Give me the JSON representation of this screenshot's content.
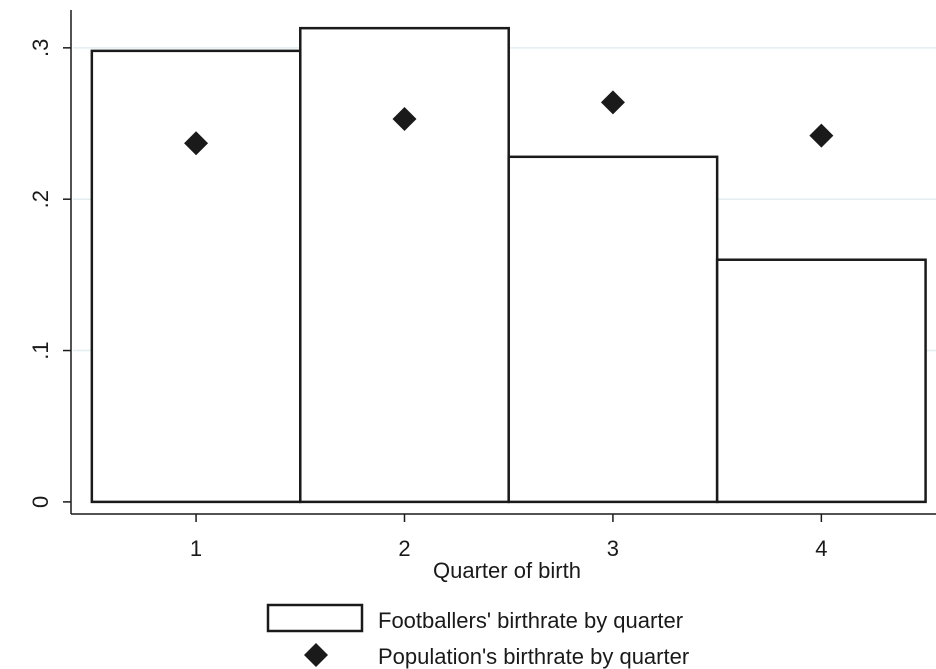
{
  "chart_data": {
    "type": "bar",
    "categories": [
      "1",
      "2",
      "3",
      "4"
    ],
    "series": [
      {
        "name": "Footballers' birthrate by quarter",
        "kind": "bar",
        "values": [
          0.298,
          0.313,
          0.228,
          0.16
        ]
      },
      {
        "name": "Population's birthrate by quarter",
        "kind": "scatter",
        "marker": "diamond",
        "values": [
          0.237,
          0.253,
          0.264,
          0.242
        ]
      }
    ],
    "x": [
      1,
      2,
      3,
      4
    ],
    "xlim": [
      0.4,
      4.55
    ],
    "ylim": [
      -0.008,
      0.325
    ],
    "yticks": [
      0,
      0.1,
      0.2,
      0.3
    ],
    "ytick_labels": [
      "0",
      ".1",
      ".2",
      ".3"
    ],
    "xticks": [
      1,
      2,
      3,
      4
    ],
    "xtick_labels": [
      "1",
      "2",
      "3",
      "4"
    ],
    "xlabel": "Quarter of birth",
    "ylabel": "",
    "title": "",
    "grid": "horizontal",
    "legend_position": "bottom",
    "colors": {
      "bar_fill": "#ffffff",
      "bar_edge": "#1a1a1a",
      "marker": "#1a1a1a",
      "grid": "#e3eef0",
      "axis": "#1a1a1a"
    }
  }
}
